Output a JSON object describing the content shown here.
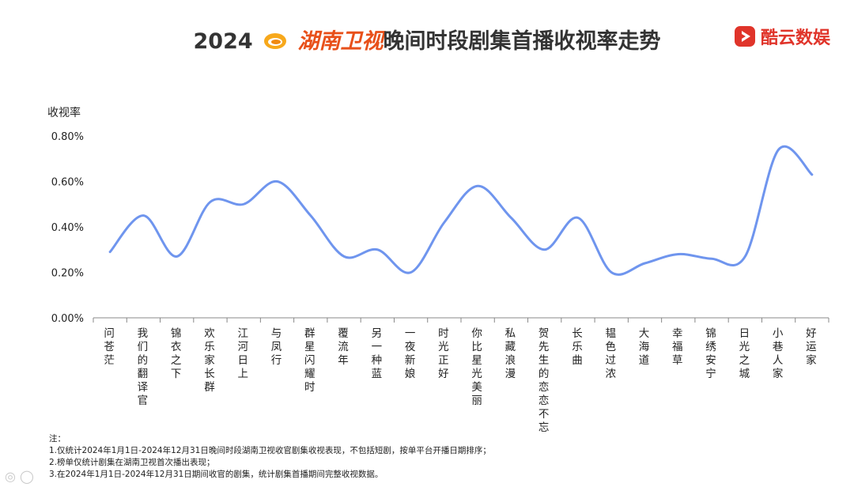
{
  "header": {
    "year": "2024",
    "channel": "湖南卫视",
    "title_rest": "晚间时段剧集首播收视率走势",
    "brand_name": "酷云数娱"
  },
  "colors": {
    "line": "#6f95ee",
    "channel": "#e8501a",
    "brand": "#e0342a",
    "axis": "#888888"
  },
  "chart_data": {
    "type": "line",
    "title": "2024湖南卫视晚间时段剧集首播收视率走势",
    "ylabel": "收视率",
    "xlabel": "",
    "ylim": [
      0,
      0.8
    ],
    "y_ticks": [
      "0.00%",
      "0.20%",
      "0.40%",
      "0.60%",
      "0.80%"
    ],
    "grid": false,
    "categories": [
      "问苍茫",
      "我们的翻译官",
      "锦衣之下",
      "欢乐家长群",
      "江河日上",
      "与凤行",
      "群星闪耀时",
      "覆流年",
      "另一种蓝",
      "一夜新娘",
      "时光正好",
      "你比星光美丽",
      "私藏浪漫",
      "贺先生的恋恋不忘",
      "长乐曲",
      "韫色过浓",
      "大海道",
      "幸福草",
      "锦绣安宁",
      "日光之城",
      "小巷人家",
      "好运家"
    ],
    "series": [
      {
        "values": [
          0.29,
          0.45,
          0.27,
          0.51,
          0.5,
          0.6,
          0.45,
          0.27,
          0.3,
          0.2,
          0.42,
          0.58,
          0.44,
          0.3,
          0.44,
          0.2,
          0.24,
          0.28,
          0.26,
          0.27,
          0.74,
          0.63
        ]
      }
    ]
  },
  "notes": {
    "heading": "注：",
    "lines": [
      "1.仅统计2024年1月1日-2024年12月31日晚间时段湖南卫视收官剧集收视表现，不包括短剧，按单平台开播日期排序；",
      "2.榜单仅统计剧集在湖南卫视首次播出表现；",
      "3.在2024年1月1日-2024年12月31日期间收官的剧集，统计剧集首播期间完整收视数据。"
    ]
  }
}
